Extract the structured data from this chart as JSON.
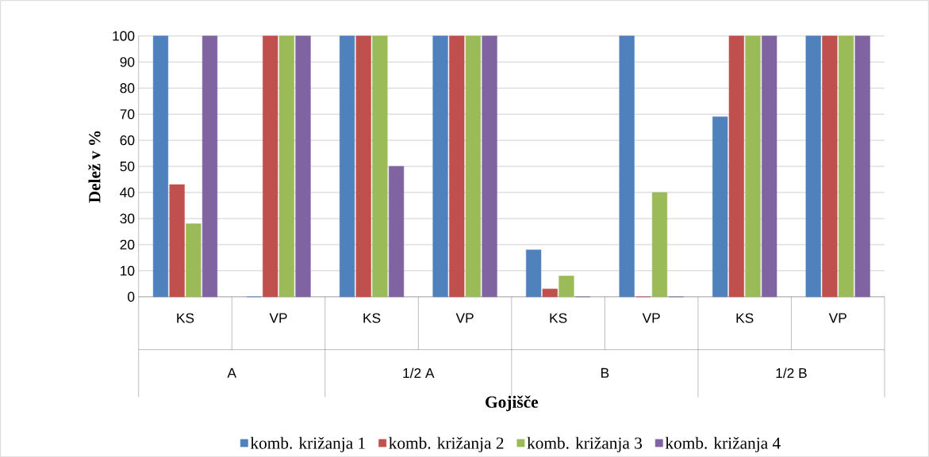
{
  "chart_data": {
    "type": "bar",
    "xlabel": "Gojišče",
    "ylabel": "Delež v %",
    "categories": [
      "KS",
      "VP",
      "KS",
      "VP",
      "KS",
      "VP",
      "KS",
      "VP"
    ],
    "annotations": [
      "A",
      "1/2 A",
      "B",
      "1/2 B"
    ],
    "series": [
      {
        "name": "komb. križanja 1",
        "color": "#4f81bd",
        "values": [
          100,
          0,
          100,
          100,
          18,
          100,
          69,
          100
        ]
      },
      {
        "name": "komb. križanja 2",
        "color": "#c0504d",
        "values": [
          43,
          100,
          100,
          100,
          3,
          0,
          100,
          100
        ]
      },
      {
        "name": "komb. križanja 3",
        "color": "#9bbb59",
        "values": [
          28,
          100,
          100,
          100,
          8,
          40,
          100,
          100
        ]
      },
      {
        "name": "komb. križanja 4",
        "color": "#8064a2",
        "values": [
          100,
          100,
          50,
          100,
          0,
          0,
          100,
          100
        ]
      }
    ],
    "ylim": [
      0,
      100
    ],
    "yticks": [
      0,
      10,
      20,
      30,
      40,
      50,
      60,
      70,
      80,
      90,
      100
    ],
    "grid": "y",
    "legend": "bottom"
  }
}
